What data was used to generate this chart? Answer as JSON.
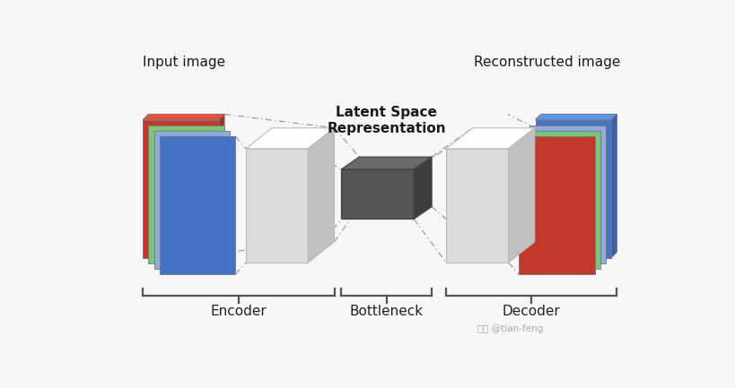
{
  "bg_color": "#f7f7f7",
  "input_label": "Input image",
  "output_label": "Reconstructed image",
  "latent_label": "Latent Space\nRepresentation",
  "encoder_label": "Encoder",
  "bottleneck_label": "Bottleneck",
  "decoder_label": "Decoder",
  "blue_color": "#4472C4",
  "light_blue_color": "#8FAADC",
  "red_color": "#C0392B",
  "green_color": "#7DC47A",
  "gray_light": "#DCDCDC",
  "gray_lighter": "#EFEFEF",
  "gray_mid": "#C0C0C0",
  "gray_dark": "#555555",
  "gray_darker": "#3D3D3D",
  "white": "#FFFFFF",
  "watermark": "知乎 @tian-feng",
  "line_color": "#999999",
  "brace_color": "#555555"
}
